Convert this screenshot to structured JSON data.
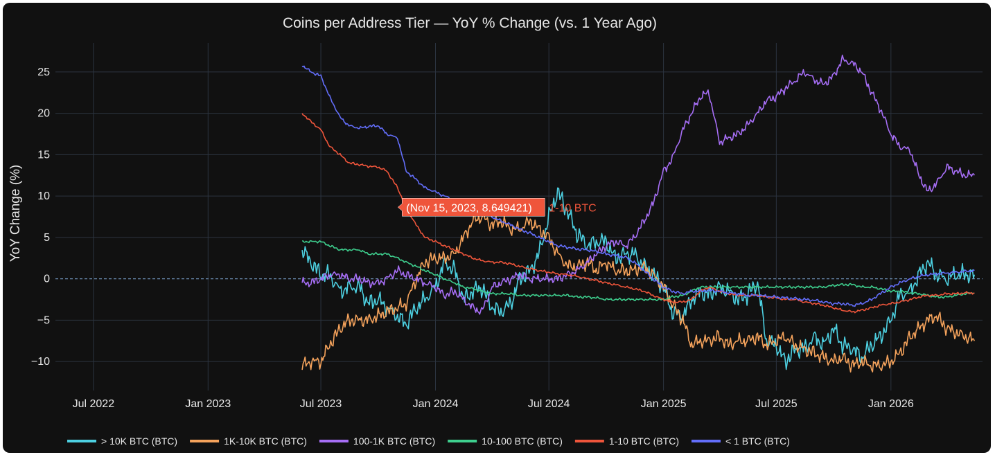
{
  "chart_data": {
    "type": "line",
    "title": "Coins per Address Tier — YoY % Change (vs. 1 Year Ago)",
    "ylabel": "YoY Change (%)",
    "xlabel": "",
    "xlim": [
      "2022-05-01",
      "2026-05-28"
    ],
    "ylim": [
      -13.5,
      28.5
    ],
    "x_ticks": [
      {
        "date": "2022-07-01",
        "label": "Jul 2022"
      },
      {
        "date": "2023-01-01",
        "label": "Jan 2023"
      },
      {
        "date": "2023-07-01",
        "label": "Jul 2023"
      },
      {
        "date": "2024-01-01",
        "label": "Jan 2024"
      },
      {
        "date": "2024-07-01",
        "label": "Jul 2024"
      },
      {
        "date": "2025-01-01",
        "label": "Jan 2025"
      },
      {
        "date": "2025-07-01",
        "label": "Jul 2025"
      },
      {
        "date": "2026-01-01",
        "label": "Jan 2026"
      }
    ],
    "y_ticks": [
      25,
      20,
      15,
      10,
      5,
      0,
      -5,
      -10
    ],
    "grid": true,
    "zero_line": "dashed",
    "legend_position": "bottom",
    "tooltip": {
      "text": "(Nov 15, 2023, 8.649421)",
      "series": "1-10 BTC",
      "x": "2023-11-15",
      "y": 8.649421
    },
    "series": [
      {
        "name": "> 10K BTC (BTC)",
        "color": "#4dd0e1",
        "x": [
          "2023-06-01",
          "2023-06-15",
          "2023-07-01",
          "2023-07-15",
          "2023-08-01",
          "2023-08-15",
          "2023-09-01",
          "2023-09-15",
          "2023-10-01",
          "2023-10-15",
          "2023-11-01",
          "2023-11-15",
          "2023-12-01",
          "2023-12-15",
          "2024-01-01",
          "2024-01-15",
          "2024-02-01",
          "2024-02-15",
          "2024-03-01",
          "2024-03-15",
          "2024-04-01",
          "2024-04-15",
          "2024-05-01",
          "2024-05-15",
          "2024-06-01",
          "2024-06-15",
          "2024-07-01",
          "2024-07-15",
          "2024-08-01",
          "2024-08-15",
          "2024-09-01",
          "2024-09-15",
          "2024-10-01",
          "2024-10-15",
          "2024-11-01",
          "2024-11-15",
          "2024-12-01",
          "2024-12-15",
          "2025-01-01",
          "2025-01-15",
          "2025-02-01",
          "2025-02-15",
          "2025-03-01",
          "2025-03-15",
          "2025-04-01",
          "2025-04-15",
          "2025-05-01",
          "2025-05-15",
          "2025-06-01",
          "2025-06-15",
          "2025-07-01",
          "2025-07-15",
          "2025-08-01",
          "2025-08-15",
          "2025-09-01",
          "2025-09-15",
          "2025-10-01",
          "2025-10-15",
          "2025-11-01",
          "2025-11-15",
          "2025-12-01",
          "2025-12-15",
          "2026-01-01",
          "2026-01-15",
          "2026-02-01",
          "2026-02-15",
          "2026-03-01",
          "2026-03-15",
          "2026-04-01",
          "2026-04-15",
          "2026-05-01",
          "2026-05-15"
        ],
        "values": [
          3.5,
          2.0,
          0.5,
          0.5,
          -1.5,
          -1.0,
          -1.0,
          -3.0,
          -2.5,
          -3.5,
          -4.5,
          -5.5,
          -3.5,
          -2.5,
          -1.0,
          2.0,
          1.0,
          -2.5,
          -1.5,
          -1.0,
          -3.5,
          -4.0,
          -3.0,
          0.0,
          1.0,
          3.0,
          7.5,
          10.5,
          8.0,
          5.5,
          4.0,
          4.5,
          4.5,
          2.5,
          3.0,
          3.0,
          1.5,
          0.5,
          -1.0,
          -4.0,
          -4.5,
          -2.5,
          -1.5,
          -2.0,
          -1.0,
          -1.5,
          -2.5,
          -2.0,
          -0.5,
          -7.5,
          -8.0,
          -10.0,
          -8.5,
          -8.5,
          -7.0,
          -8.0,
          -6.0,
          -8.0,
          -8.5,
          -9.5,
          -8.0,
          -7.0,
          -5.0,
          -2.0,
          -1.5,
          0.5,
          2.0,
          0.5,
          0.0,
          0.5,
          0.5,
          0.5
        ]
      },
      {
        "name": "1K-10K BTC (BTC)",
        "color": "#f5a35c",
        "x": [
          "2023-06-01",
          "2023-06-15",
          "2023-07-01",
          "2023-07-15",
          "2023-08-01",
          "2023-08-15",
          "2023-09-01",
          "2023-09-15",
          "2023-10-01",
          "2023-10-15",
          "2023-11-01",
          "2023-11-15",
          "2023-12-01",
          "2023-12-15",
          "2024-01-01",
          "2024-01-15",
          "2024-02-01",
          "2024-02-15",
          "2024-03-01",
          "2024-03-15",
          "2024-04-01",
          "2024-04-15",
          "2024-05-01",
          "2024-05-15",
          "2024-06-01",
          "2024-06-15",
          "2024-07-01",
          "2024-07-15",
          "2024-08-01",
          "2024-08-15",
          "2024-09-01",
          "2024-09-15",
          "2024-10-01",
          "2024-10-15",
          "2024-11-01",
          "2024-11-15",
          "2024-12-01",
          "2024-12-15",
          "2025-01-01",
          "2025-01-15",
          "2025-02-01",
          "2025-02-15",
          "2025-03-01",
          "2025-03-15",
          "2025-04-01",
          "2025-04-15",
          "2025-05-01",
          "2025-05-15",
          "2025-06-01",
          "2025-06-15",
          "2025-07-01",
          "2025-07-15",
          "2025-08-01",
          "2025-08-15",
          "2025-09-01",
          "2025-09-15",
          "2025-10-01",
          "2025-10-15",
          "2025-11-01",
          "2025-11-15",
          "2025-12-01",
          "2025-12-15",
          "2026-01-01",
          "2026-01-15",
          "2026-02-01",
          "2026-02-15",
          "2026-03-01",
          "2026-03-15",
          "2026-04-01",
          "2026-04-15",
          "2026-05-01",
          "2026-05-15"
        ],
        "values": [
          -10.5,
          -10.0,
          -10.0,
          -8.0,
          -6.0,
          -5.0,
          -5.0,
          -5.0,
          -4.5,
          -4.0,
          -3.5,
          -3.0,
          0.0,
          2.0,
          2.5,
          2.5,
          3.0,
          5.0,
          7.0,
          7.5,
          6.5,
          7.0,
          6.0,
          6.0,
          7.0,
          6.0,
          5.0,
          3.0,
          1.5,
          1.5,
          2.0,
          1.0,
          2.0,
          1.0,
          1.0,
          1.0,
          1.5,
          0.5,
          -1.0,
          -3.0,
          -5.0,
          -8.0,
          -7.5,
          -7.5,
          -7.0,
          -8.0,
          -7.5,
          -7.5,
          -7.0,
          -8.0,
          -7.5,
          -7.0,
          -8.0,
          -8.5,
          -9.0,
          -9.5,
          -10.0,
          -9.5,
          -10.5,
          -10.0,
          -10.5,
          -10.5,
          -10.0,
          -9.0,
          -7.0,
          -6.0,
          -5.0,
          -4.5,
          -6.0,
          -6.5,
          -7.0,
          -7.5
        ]
      },
      {
        "name": "100-1K BTC (BTC)",
        "color": "#a66ef5",
        "x": [
          "2023-06-01",
          "2023-06-15",
          "2023-07-01",
          "2023-07-15",
          "2023-08-01",
          "2023-08-15",
          "2023-09-01",
          "2023-09-15",
          "2023-10-01",
          "2023-10-15",
          "2023-11-01",
          "2023-11-15",
          "2023-12-01",
          "2023-12-15",
          "2024-01-01",
          "2024-01-15",
          "2024-02-01",
          "2024-02-15",
          "2024-03-01",
          "2024-03-15",
          "2024-04-01",
          "2024-04-15",
          "2024-05-01",
          "2024-05-15",
          "2024-06-01",
          "2024-06-15",
          "2024-07-01",
          "2024-07-15",
          "2024-08-01",
          "2024-08-15",
          "2024-09-01",
          "2024-09-15",
          "2024-10-01",
          "2024-10-15",
          "2024-11-01",
          "2024-11-15",
          "2024-12-01",
          "2024-12-15",
          "2025-01-01",
          "2025-01-15",
          "2025-02-01",
          "2025-02-15",
          "2025-03-01",
          "2025-03-15",
          "2025-04-01",
          "2025-04-15",
          "2025-05-01",
          "2025-05-15",
          "2025-06-01",
          "2025-06-15",
          "2025-07-01",
          "2025-07-15",
          "2025-08-01",
          "2025-08-15",
          "2025-09-01",
          "2025-09-15",
          "2025-10-01",
          "2025-10-15",
          "2025-11-01",
          "2025-11-15",
          "2025-12-01",
          "2025-12-15",
          "2026-01-01",
          "2026-01-15",
          "2026-02-01",
          "2026-02-15",
          "2026-03-01",
          "2026-03-15",
          "2026-04-01",
          "2026-04-15",
          "2026-05-01",
          "2026-05-15"
        ],
        "values": [
          -0.5,
          -0.5,
          0.0,
          0.5,
          0.5,
          0.0,
          0.0,
          -0.5,
          -0.5,
          0.0,
          1.0,
          0.5,
          0.0,
          -0.5,
          -1.0,
          -2.0,
          -1.5,
          -2.5,
          -3.5,
          -4.0,
          -1.0,
          -0.5,
          0.0,
          0.5,
          0.0,
          0.0,
          0.0,
          0.0,
          0.5,
          1.0,
          2.0,
          3.0,
          4.0,
          4.5,
          4.0,
          5.0,
          7.0,
          9.0,
          13.0,
          14.5,
          18.0,
          20.0,
          22.0,
          22.5,
          16.5,
          17.0,
          17.5,
          18.5,
          20.0,
          21.5,
          22.0,
          23.0,
          24.0,
          25.0,
          24.0,
          23.5,
          24.5,
          26.5,
          26.0,
          25.0,
          22.5,
          20.5,
          17.5,
          16.0,
          15.5,
          12.5,
          10.5,
          11.5,
          13.5,
          13.0,
          12.5,
          12.5
        ]
      },
      {
        "name": "10-100 BTC (BTC)",
        "color": "#3ecf8e",
        "x": [
          "2023-06-01",
          "2023-06-15",
          "2023-07-01",
          "2023-07-15",
          "2023-08-01",
          "2023-08-15",
          "2023-09-01",
          "2023-09-15",
          "2023-10-01",
          "2023-10-15",
          "2023-11-01",
          "2023-11-15",
          "2023-12-01",
          "2023-12-15",
          "2024-01-01",
          "2024-01-15",
          "2024-02-01",
          "2024-02-15",
          "2024-03-01",
          "2024-03-15",
          "2024-04-01",
          "2024-04-15",
          "2024-05-01",
          "2024-05-15",
          "2024-06-01",
          "2024-06-15",
          "2024-07-01",
          "2024-07-15",
          "2024-08-01",
          "2024-08-15",
          "2024-09-01",
          "2024-09-15",
          "2024-10-01",
          "2024-10-15",
          "2024-11-01",
          "2024-11-15",
          "2024-12-01",
          "2024-12-15",
          "2025-01-01",
          "2025-01-15",
          "2025-02-01",
          "2025-02-15",
          "2025-03-01",
          "2025-03-15",
          "2025-04-01",
          "2025-04-15",
          "2025-05-01",
          "2025-05-15",
          "2025-06-01",
          "2025-06-15",
          "2025-07-01",
          "2025-07-15",
          "2025-08-01",
          "2025-08-15",
          "2025-09-01",
          "2025-09-15",
          "2025-10-01",
          "2025-10-15",
          "2025-11-01",
          "2025-11-15",
          "2025-12-01",
          "2025-12-15",
          "2026-01-01",
          "2026-01-15",
          "2026-02-01",
          "2026-02-15",
          "2026-03-01",
          "2026-03-15",
          "2026-04-01",
          "2026-04-15",
          "2026-05-01",
          "2026-05-15"
        ],
        "values": [
          4.5,
          4.5,
          4.5,
          4.0,
          3.5,
          3.5,
          3.5,
          3.0,
          3.0,
          3.0,
          2.5,
          2.0,
          1.5,
          1.0,
          0.5,
          0.0,
          -0.5,
          -1.0,
          -1.2,
          -1.5,
          -1.8,
          -1.8,
          -1.8,
          -2.0,
          -2.0,
          -2.0,
          -2.0,
          -2.0,
          -2.0,
          -2.2,
          -2.2,
          -2.3,
          -2.5,
          -2.5,
          -2.5,
          -2.5,
          -2.5,
          -2.5,
          -2.5,
          -2.2,
          -2.0,
          -1.5,
          -1.0,
          -1.0,
          -1.0,
          -1.0,
          -1.0,
          -1.0,
          -1.0,
          -1.0,
          -1.0,
          -1.0,
          -1.0,
          -1.0,
          -1.0,
          -1.0,
          -0.8,
          -0.7,
          -0.7,
          -1.0,
          -1.0,
          -1.2,
          -1.5,
          -1.5,
          -1.7,
          -1.8,
          -2.0,
          -2.2,
          -2.2,
          -2.0,
          -1.8,
          -1.7
        ]
      },
      {
        "name": "1-10 BTC (BTC)",
        "color": "#ef553b",
        "x": [
          "2023-06-01",
          "2023-06-15",
          "2023-07-01",
          "2023-07-15",
          "2023-08-01",
          "2023-08-15",
          "2023-09-01",
          "2023-09-15",
          "2023-10-01",
          "2023-10-15",
          "2023-11-01",
          "2023-11-15",
          "2023-12-01",
          "2023-12-15",
          "2024-01-01",
          "2024-01-15",
          "2024-02-01",
          "2024-02-15",
          "2024-03-01",
          "2024-03-15",
          "2024-04-01",
          "2024-04-15",
          "2024-05-01",
          "2024-05-15",
          "2024-06-01",
          "2024-06-15",
          "2024-07-01",
          "2024-07-15",
          "2024-08-01",
          "2024-08-15",
          "2024-09-01",
          "2024-09-15",
          "2024-10-01",
          "2024-10-15",
          "2024-11-01",
          "2024-11-15",
          "2024-12-01",
          "2024-12-15",
          "2025-01-01",
          "2025-01-15",
          "2025-02-01",
          "2025-02-15",
          "2025-03-01",
          "2025-03-15",
          "2025-04-01",
          "2025-04-15",
          "2025-05-01",
          "2025-05-15",
          "2025-06-01",
          "2025-06-15",
          "2025-07-01",
          "2025-07-15",
          "2025-08-01",
          "2025-08-15",
          "2025-09-01",
          "2025-09-15",
          "2025-10-01",
          "2025-10-15",
          "2025-11-01",
          "2025-11-15",
          "2025-12-01",
          "2025-12-15",
          "2026-01-01",
          "2026-01-15",
          "2026-02-01",
          "2026-02-15",
          "2026-03-01",
          "2026-03-15",
          "2026-04-01",
          "2026-04-15",
          "2026-05-01",
          "2026-05-15"
        ],
        "values": [
          20.0,
          19.0,
          18.0,
          16.0,
          15.0,
          14.0,
          13.8,
          13.6,
          13.5,
          13.0,
          11.0,
          8.6,
          6.5,
          5.0,
          4.5,
          4.0,
          3.5,
          3.0,
          2.5,
          2.2,
          2.0,
          2.0,
          1.8,
          1.5,
          1.2,
          1.0,
          0.8,
          0.6,
          0.5,
          0.3,
          0.0,
          -0.2,
          -0.5,
          -0.7,
          -1.0,
          -1.2,
          -1.5,
          -2.0,
          -2.5,
          -2.8,
          -2.8,
          -2.5,
          -1.5,
          -1.0,
          -1.5,
          -1.8,
          -2.0,
          -2.0,
          -2.0,
          -2.2,
          -2.3,
          -2.5,
          -2.5,
          -2.8,
          -3.0,
          -3.2,
          -3.5,
          -3.8,
          -4.0,
          -3.8,
          -3.5,
          -3.2,
          -3.0,
          -2.8,
          -2.5,
          -2.2,
          -2.0,
          -2.0,
          -1.8,
          -1.8,
          -1.7,
          -1.7
        ]
      },
      {
        "name": "< 1 BTC (BTC)",
        "color": "#636efa",
        "x": [
          "2023-06-01",
          "2023-06-15",
          "2023-07-01",
          "2023-07-15",
          "2023-08-01",
          "2023-08-15",
          "2023-09-01",
          "2023-09-15",
          "2023-10-01",
          "2023-10-15",
          "2023-11-01",
          "2023-11-15",
          "2023-12-01",
          "2023-12-15",
          "2024-01-01",
          "2024-01-15",
          "2024-02-01",
          "2024-02-15",
          "2024-03-01",
          "2024-03-15",
          "2024-04-01",
          "2024-04-15",
          "2024-05-01",
          "2024-05-15",
          "2024-06-01",
          "2024-06-15",
          "2024-07-01",
          "2024-07-15",
          "2024-08-01",
          "2024-08-15",
          "2024-09-01",
          "2024-09-15",
          "2024-10-01",
          "2024-10-15",
          "2024-11-01",
          "2024-11-15",
          "2024-12-01",
          "2024-12-15",
          "2025-01-01",
          "2025-01-15",
          "2025-02-01",
          "2025-02-15",
          "2025-03-01",
          "2025-03-15",
          "2025-04-01",
          "2025-04-15",
          "2025-05-01",
          "2025-05-15",
          "2025-06-01",
          "2025-06-15",
          "2025-07-01",
          "2025-07-15",
          "2025-08-01",
          "2025-08-15",
          "2025-09-01",
          "2025-09-15",
          "2025-10-01",
          "2025-10-15",
          "2025-11-01",
          "2025-11-15",
          "2025-12-01",
          "2025-12-15",
          "2026-01-01",
          "2026-01-15",
          "2026-02-01",
          "2026-02-15",
          "2026-03-01",
          "2026-03-15",
          "2026-04-01",
          "2026-04-15",
          "2026-05-01",
          "2026-05-15"
        ],
        "values": [
          25.8,
          25.0,
          24.5,
          22.0,
          19.5,
          18.5,
          18.2,
          18.4,
          18.5,
          17.5,
          17.0,
          13.0,
          12.0,
          11.0,
          10.5,
          10.0,
          9.5,
          9.0,
          8.5,
          8.0,
          7.5,
          7.0,
          6.5,
          6.0,
          5.5,
          5.0,
          4.5,
          4.0,
          3.8,
          3.6,
          3.5,
          3.3,
          3.0,
          2.8,
          2.6,
          2.0,
          1.0,
          0.0,
          -1.0,
          -1.5,
          -1.8,
          -1.5,
          -1.5,
          -1.4,
          -1.5,
          -1.7,
          -1.8,
          -2.0,
          -2.0,
          -2.1,
          -2.2,
          -2.3,
          -2.4,
          -2.5,
          -2.6,
          -2.8,
          -3.0,
          -3.0,
          -3.2,
          -3.0,
          -2.5,
          -1.8,
          -1.0,
          -0.5,
          0.0,
          0.3,
          0.5,
          0.6,
          0.7,
          0.8,
          0.9,
          1.0
        ]
      }
    ]
  }
}
